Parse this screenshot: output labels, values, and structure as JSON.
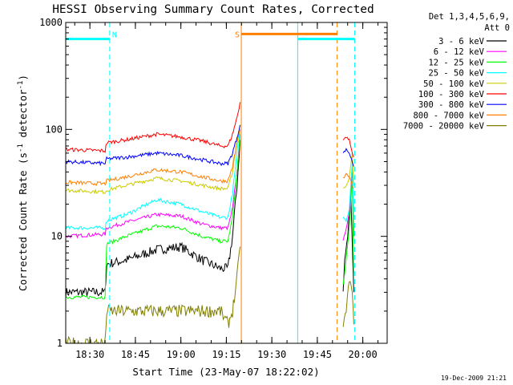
{
  "chart_data": {
    "type": "line",
    "title": "HESSI Observing Summary Count Rates, Corrected",
    "xlabel": "Start Time (23-May-07 18:22:02)",
    "ylabel": "Corrected Count Rate (s⁻¹ detector⁻¹)",
    "ylabel_parts": {
      "base": "Corrected Count Rate (s",
      "sup1": "-1",
      "mid": " detector",
      "sup2": "-1",
      "end": ")"
    },
    "y_scale": "log",
    "ylim": [
      1,
      1000
    ],
    "xlim_minutes": [
      0,
      106
    ],
    "x_ticks": [
      {
        "label": "18:30",
        "t": 7.97
      },
      {
        "label": "18:45",
        "t": 22.97
      },
      {
        "label": "19:00",
        "t": 37.97
      },
      {
        "label": "19:15",
        "t": 52.97
      },
      {
        "label": "19:30",
        "t": 67.97
      },
      {
        "label": "19:45",
        "t": 82.97
      },
      {
        "label": "20:00",
        "t": 97.97
      }
    ],
    "y_ticks": [
      {
        "label": "1",
        "v": 1
      },
      {
        "label": "10",
        "v": 10
      },
      {
        "label": "100",
        "v": 100
      },
      {
        "label": "1000",
        "v": 1000
      }
    ],
    "legend": {
      "header": [
        "Det 1,3,4,5,6,9,",
        "Att 0"
      ],
      "placement": "right"
    },
    "series": [
      {
        "name": "3 - 6 keV",
        "color": "#000000",
        "points": [
          [
            0,
            3
          ],
          [
            13,
            3
          ],
          [
            13.5,
            5.5
          ],
          [
            20,
            6
          ],
          [
            30,
            7.5
          ],
          [
            38,
            8
          ],
          [
            45,
            6
          ],
          [
            51,
            5
          ],
          [
            53.5,
            5
          ],
          [
            55,
            10
          ],
          [
            56.5,
            30
          ],
          [
            57.5,
            80
          ]
        ],
        "gap": [
          60,
          91
        ],
        "points2": [
          [
            91.5,
            3
          ],
          [
            92,
            6
          ],
          [
            93,
            10
          ],
          [
            94,
            25
          ],
          [
            95,
            3
          ]
        ]
      },
      {
        "name": "6 - 12 keV",
        "color": "#ff00ff",
        "points": [
          [
            0,
            10
          ],
          [
            13,
            10.5
          ],
          [
            13.5,
            12
          ],
          [
            20,
            13.5
          ],
          [
            30,
            16
          ],
          [
            38,
            15.5
          ],
          [
            45,
            13
          ],
          [
            51,
            12
          ],
          [
            53.5,
            12
          ],
          [
            55,
            18
          ],
          [
            56.5,
            40
          ],
          [
            57.5,
            90
          ]
        ],
        "gap": [
          60,
          91
        ],
        "points2": [
          [
            91.5,
            9
          ],
          [
            92.5,
            12
          ],
          [
            93.5,
            16
          ],
          [
            94.5,
            40
          ],
          [
            95,
            10
          ]
        ]
      },
      {
        "name": "12 - 25 keV",
        "color": "#00ff00",
        "points": [
          [
            0,
            2.7
          ],
          [
            13,
            2.7
          ],
          [
            13.5,
            8.5
          ],
          [
            20,
            10
          ],
          [
            30,
            12.5
          ],
          [
            38,
            12
          ],
          [
            45,
            10
          ],
          [
            51,
            9
          ],
          [
            53.5,
            9
          ],
          [
            55,
            15
          ],
          [
            56.5,
            40
          ],
          [
            57.5,
            90
          ]
        ],
        "gap": [
          60,
          91
        ],
        "points2": [
          [
            91.5,
            3.5
          ],
          [
            92.5,
            6
          ],
          [
            93.5,
            12
          ],
          [
            94.5,
            35
          ],
          [
            95,
            4
          ]
        ]
      },
      {
        "name": "25 - 50 keV",
        "color": "#00ffff",
        "points": [
          [
            0,
            12
          ],
          [
            13,
            12
          ],
          [
            13.5,
            14
          ],
          [
            20,
            16
          ],
          [
            30,
            22
          ],
          [
            38,
            20
          ],
          [
            45,
            17
          ],
          [
            51,
            15
          ],
          [
            53.5,
            15
          ],
          [
            55,
            25
          ],
          [
            56.5,
            60
          ],
          [
            57.5,
            100
          ]
        ],
        "gap": [
          60,
          91
        ],
        "points2": [
          [
            91.5,
            15
          ],
          [
            92.5,
            14
          ],
          [
            93.5,
            18
          ],
          [
            94.5,
            50
          ],
          [
            95,
            15
          ]
        ]
      },
      {
        "name": "50 - 100 keV",
        "color": "#cccc00",
        "points": [
          [
            0,
            27
          ],
          [
            13,
            26
          ],
          [
            13.5,
            27
          ],
          [
            20,
            30
          ],
          [
            30,
            35
          ],
          [
            38,
            33
          ],
          [
            45,
            30
          ],
          [
            51,
            28
          ],
          [
            53.5,
            28
          ],
          [
            55,
            40
          ],
          [
            56.5,
            80
          ],
          [
            57.5,
            110
          ]
        ],
        "gap": [
          60,
          91
        ],
        "points2": [
          [
            91.5,
            28
          ],
          [
            92.5,
            30
          ],
          [
            93.5,
            35
          ],
          [
            94.5,
            60
          ],
          [
            95,
            30
          ]
        ]
      },
      {
        "name": "100 - 300 keV",
        "color": "#ff0000",
        "points": [
          [
            0,
            65
          ],
          [
            13,
            63
          ],
          [
            13.5,
            75
          ],
          [
            20,
            80
          ],
          [
            30,
            90
          ],
          [
            38,
            85
          ],
          [
            45,
            78
          ],
          [
            51,
            70
          ],
          [
            53.5,
            70
          ],
          [
            55,
            90
          ],
          [
            56.5,
            130
          ],
          [
            57.5,
            180
          ]
        ],
        "gap": [
          60,
          91
        ],
        "points2": [
          [
            91.5,
            80
          ],
          [
            92.5,
            85
          ],
          [
            93.5,
            80
          ],
          [
            94.5,
            60
          ],
          [
            95,
            55
          ]
        ]
      },
      {
        "name": "300 - 800 keV",
        "color": "#0000ff",
        "points": [
          [
            0,
            50
          ],
          [
            13,
            48
          ],
          [
            13.5,
            53
          ],
          [
            20,
            55
          ],
          [
            30,
            60
          ],
          [
            38,
            57
          ],
          [
            45,
            52
          ],
          [
            51,
            48
          ],
          [
            53.5,
            48
          ],
          [
            55,
            60
          ],
          [
            56.5,
            85
          ],
          [
            57.5,
            110
          ]
        ],
        "gap": [
          60,
          91
        ],
        "points2": [
          [
            91.5,
            60
          ],
          [
            92.5,
            65
          ],
          [
            93.5,
            60
          ],
          [
            94.5,
            50
          ],
          [
            95,
            45
          ]
        ]
      },
      {
        "name": "800 - 7000 keV",
        "color": "#ff8000",
        "points": [
          [
            0,
            32
          ],
          [
            13,
            31
          ],
          [
            13.5,
            33
          ],
          [
            20,
            36
          ],
          [
            30,
            42
          ],
          [
            38,
            40
          ],
          [
            45,
            36
          ],
          [
            51,
            33
          ],
          [
            53.5,
            33
          ],
          [
            55,
            45
          ],
          [
            56.5,
            75
          ],
          [
            57.5,
            100
          ]
        ],
        "gap": [
          60,
          91
        ],
        "points2": [
          [
            91.5,
            35
          ],
          [
            92.5,
            38
          ],
          [
            93.5,
            36
          ],
          [
            94.5,
            30
          ],
          [
            95,
            28
          ]
        ]
      },
      {
        "name": "7000 - 20000 keV",
        "color": "#808000",
        "points": [
          [
            0,
            1
          ],
          [
            13,
            1
          ],
          [
            13.5,
            2
          ],
          [
            20,
            2
          ],
          [
            30,
            2
          ],
          [
            38,
            2
          ],
          [
            45,
            2
          ],
          [
            51,
            2
          ],
          [
            53.5,
            1.5
          ],
          [
            55,
            2
          ],
          [
            56.5,
            4
          ],
          [
            57.5,
            8
          ]
        ],
        "gap": [
          60,
          91
        ],
        "points2": [
          [
            91.5,
            1.5
          ],
          [
            92.5,
            2
          ],
          [
            93.5,
            4
          ],
          [
            94.5,
            3
          ],
          [
            95,
            1.5
          ]
        ]
      }
    ],
    "annotations": [
      {
        "label": "N",
        "type": "night",
        "color": "#00ffff",
        "start": 14.5,
        "end": 68.5
      },
      {
        "label": "S",
        "type": "saa",
        "color": "#ff8000",
        "start": 57.9,
        "end": 89.5
      }
    ],
    "markers": [
      {
        "color": "#00ffff",
        "t": 14.5,
        "style": "dashed"
      },
      {
        "color": "#ff8000",
        "t": 57.9,
        "style": "solid"
      },
      {
        "color": "#00ffff",
        "t": 76.5,
        "style": "solid"
      },
      {
        "color": "#ff8000",
        "t": 89.5,
        "style": "dashed"
      },
      {
        "color": "#00ffff",
        "t": 95.3,
        "style": "dashed"
      }
    ],
    "grid": false
  },
  "timestamp": "19-Dec-2009 21:21"
}
